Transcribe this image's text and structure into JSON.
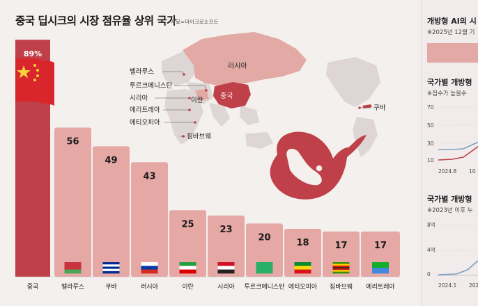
{
  "header": {
    "title": "중국 딥시크의 시장 점유율 상위 국가",
    "source": "자료=마이크로소프트"
  },
  "colors": {
    "china_bar": "#c0404a",
    "other_bar": "#e6a8a4",
    "map_land": "#ddd6d4",
    "map_highlight": "#e2a9a5",
    "map_china": "#c0404a",
    "logo": "#c0404a"
  },
  "map": {
    "labels": [
      "벨라루스",
      "투르크메니스탄",
      "시리아",
      "에리트레아",
      "에티오피아",
      "짐바브웨",
      "이란",
      "러시아",
      "중국",
      "쿠바"
    ],
    "icon": "deepseek-whale-logo"
  },
  "chart_data": {
    "type": "bar",
    "categories": [
      "중국",
      "벨라루스",
      "쿠바",
      "러시아",
      "이란",
      "시리아",
      "투르크메니스탄",
      "에티오피아",
      "짐바브웨",
      "에리트레아"
    ],
    "values": [
      89,
      56,
      49,
      43,
      25,
      23,
      20,
      18,
      17,
      17
    ],
    "value_labels": [
      "89%",
      "56",
      "49",
      "43",
      "25",
      "23",
      "20",
      "18",
      "17",
      "17"
    ],
    "highlight_index": 0,
    "ylim": [
      0,
      100
    ]
  },
  "right_panel": {
    "section1_title": "개방형 AI의 시",
    "section1_note": "※2025년 12월 기",
    "section2_title": "국가별 개방형",
    "section2_note": "※점수가 높을수",
    "section2_axis": [
      "70",
      "50",
      "30",
      "10"
    ],
    "section2_xaxis": [
      "2024.8",
      "10"
    ],
    "section3_title": "국가별 개방형",
    "section3_note": "※2023년 이후 누",
    "section3_axis": [
      "8억",
      "4억",
      "0"
    ],
    "section3_xaxis": [
      "2024.1",
      "202"
    ]
  }
}
